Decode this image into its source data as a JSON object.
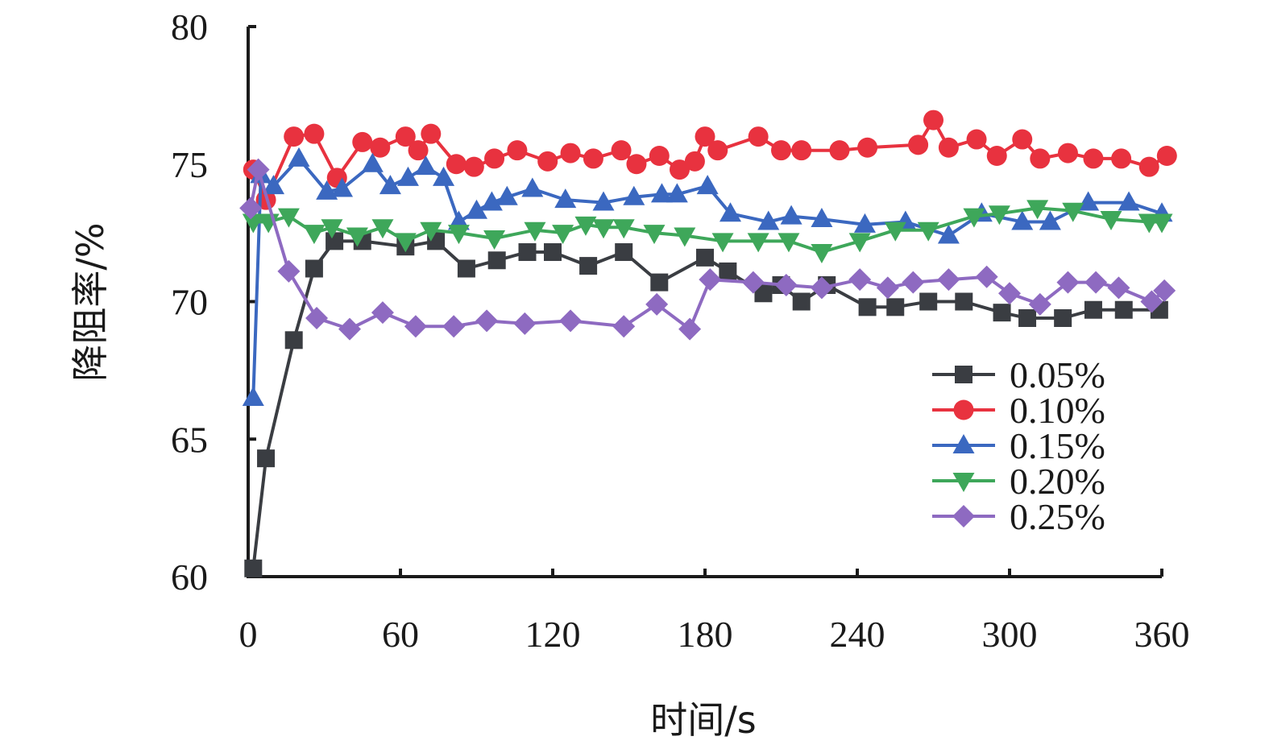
{
  "chart_data": {
    "type": "line",
    "xlabel": "时间/s",
    "ylabel": "降阻率/%",
    "xlim": [
      0,
      360
    ],
    "ylim": [
      60,
      80
    ],
    "xticks": [
      "0",
      "60",
      "120",
      "180",
      "240",
      "300",
      "360"
    ],
    "yticks": [
      "60",
      "65",
      "70",
      "75",
      "80"
    ],
    "grid": false,
    "legend_position": "right-middle",
    "series": [
      {
        "name": "0.05%",
        "color": "#3a3d42",
        "marker": "square",
        "x": [
          2,
          7,
          18,
          26,
          34,
          45,
          62,
          74,
          86,
          98,
          110,
          120,
          134,
          148,
          162,
          180,
          189,
          203,
          210,
          218,
          228,
          244,
          255,
          268,
          282,
          297,
          307,
          321,
          333,
          345,
          359
        ],
        "y": [
          60.3,
          64.3,
          68.6,
          71.2,
          72.2,
          72.2,
          72.0,
          72.2,
          71.2,
          71.5,
          71.8,
          71.8,
          71.3,
          71.8,
          70.7,
          71.6,
          71.1,
          70.3,
          70.6,
          70.0,
          70.6,
          69.8,
          69.8,
          70.0,
          70.0,
          69.6,
          69.4,
          69.4,
          69.7,
          69.7,
          69.7
        ]
      },
      {
        "name": "0.10%",
        "color": "#e8323f",
        "marker": "circle",
        "x": [
          2,
          7,
          18,
          26,
          35,
          45,
          52,
          62,
          67,
          72,
          82,
          89,
          97,
          106,
          118,
          127,
          136,
          147,
          153,
          162,
          170,
          176,
          180,
          185,
          201,
          210,
          218,
          233,
          244,
          264,
          270,
          276,
          287,
          295,
          305,
          312,
          323,
          333,
          344,
          355,
          362
        ],
        "y": [
          74.8,
          73.7,
          76.0,
          76.1,
          74.5,
          75.8,
          75.6,
          76.0,
          75.5,
          76.1,
          75.0,
          74.9,
          75.2,
          75.5,
          75.1,
          75.4,
          75.2,
          75.5,
          75.0,
          75.3,
          74.8,
          75.1,
          76.0,
          75.5,
          76.0,
          75.5,
          75.5,
          75.5,
          75.6,
          75.7,
          76.6,
          75.6,
          75.9,
          75.3,
          75.9,
          75.2,
          75.4,
          75.2,
          75.2,
          74.9,
          75.3
        ]
      },
      {
        "name": "0.15%",
        "color": "#3b68c0",
        "marker": "triangle-up",
        "x": [
          2,
          5,
          10,
          20,
          31,
          37,
          49,
          56,
          63,
          70,
          77,
          83,
          90,
          96,
          102,
          112,
          125,
          140,
          152,
          163,
          169,
          181,
          190,
          205,
          214,
          226,
          243,
          259,
          276,
          289,
          305,
          316,
          331,
          347,
          360
        ],
        "y": [
          66.5,
          74.6,
          74.2,
          75.2,
          74.0,
          74.1,
          75.0,
          74.2,
          74.5,
          74.9,
          74.5,
          72.9,
          73.3,
          73.6,
          73.8,
          74.1,
          73.7,
          73.6,
          73.8,
          73.9,
          73.9,
          74.2,
          73.2,
          72.9,
          73.1,
          73.0,
          72.8,
          72.9,
          72.4,
          73.2,
          72.9,
          72.9,
          73.6,
          73.6,
          73.2
        ]
      },
      {
        "name": "0.20%",
        "color": "#3ea75a",
        "marker": "triangle-down",
        "x": [
          2,
          8,
          16,
          26,
          33,
          43,
          53,
          62,
          72,
          83,
          97,
          113,
          124,
          133,
          140,
          148,
          160,
          172,
          187,
          201,
          213,
          226,
          241,
          255,
          268,
          286,
          296,
          311,
          325,
          340,
          355,
          360
        ],
        "y": [
          72.9,
          72.9,
          73.1,
          72.5,
          72.7,
          72.4,
          72.7,
          72.2,
          72.6,
          72.5,
          72.3,
          72.6,
          72.5,
          72.8,
          72.7,
          72.7,
          72.5,
          72.4,
          72.2,
          72.2,
          72.2,
          71.8,
          72.2,
          72.6,
          72.6,
          73.1,
          73.2,
          73.4,
          73.3,
          73.0,
          72.9,
          72.9
        ]
      },
      {
        "name": "0.25%",
        "color": "#8e6ac1",
        "marker": "diamond",
        "x": [
          1,
          4,
          16,
          27,
          40,
          53,
          66,
          81,
          94,
          109,
          127,
          148,
          161,
          174,
          182,
          199,
          212,
          226,
          241,
          252,
          262,
          276,
          291,
          300,
          312,
          323,
          334,
          343,
          356,
          361
        ],
        "y": [
          73.4,
          74.8,
          71.1,
          69.4,
          69.0,
          69.6,
          69.1,
          69.1,
          69.3,
          69.2,
          69.3,
          69.1,
          69.9,
          69.0,
          70.8,
          70.7,
          70.6,
          70.5,
          70.8,
          70.5,
          70.7,
          70.8,
          70.9,
          70.3,
          69.9,
          70.7,
          70.7,
          70.5,
          70.0,
          70.4
        ]
      }
    ]
  }
}
